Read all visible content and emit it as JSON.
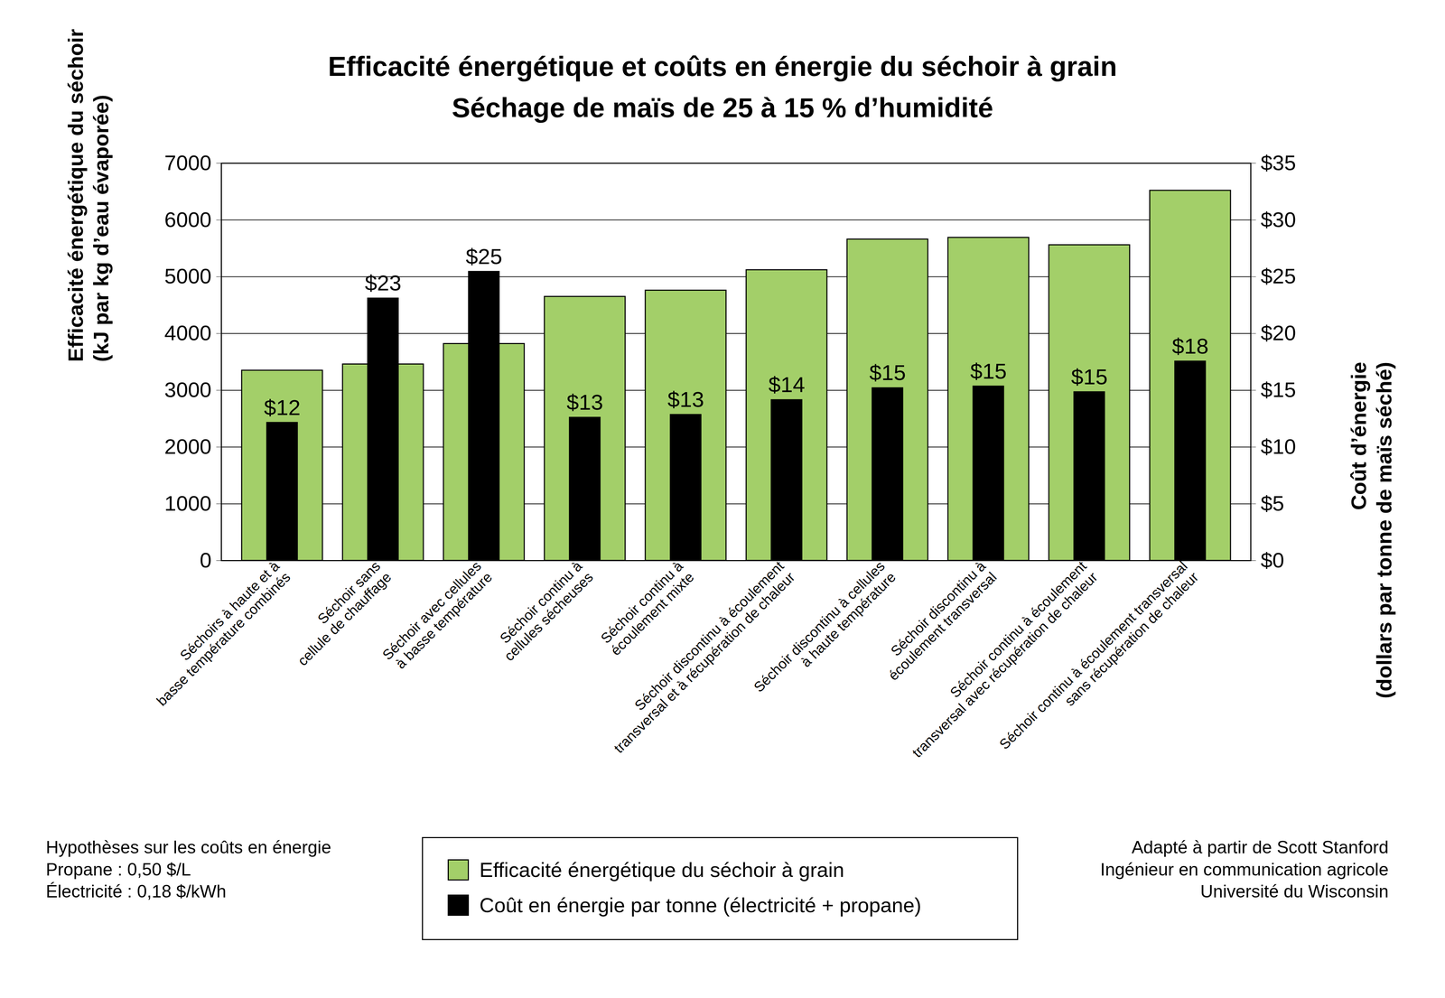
{
  "chart_data": {
    "type": "bar",
    "title": "Efficacité énergétique et coûts en énergie du séchoir à grain",
    "subtitle": "Séchage de maïs de 25 à 15 % d’humidité",
    "categories": [
      "Séchoirs à haute et à\nbasse température combinés",
      "Séchoir sans\ncellule de chauffage",
      "Séchoir avec cellules\nà basse température",
      "Séchoir continu à\ncellules sécheuses",
      "Séchoir continu à\nécoulement mixte",
      "Séchoir discontinu à écoulement\ntransversal et à récupération de chaleur",
      "Séchoir discontinu à cellules\nà haute température",
      "Séchoir discontinu à\nécoulement transversal",
      "Séchoir continu à écoulement\ntransversal avec récupération de chaleur",
      "Séchoir continu à écoulement transversal\nsans récupération de chaleur"
    ],
    "series": [
      {
        "name": "Efficacité énergétique du séchoir à grain",
        "color": "#a3cf69",
        "values": [
          3350,
          3460,
          3820,
          4650,
          4760,
          5120,
          5660,
          5690,
          5560,
          6520
        ]
      },
      {
        "name": "Coût en énergie par tonne (électricité + propane)",
        "color": "#000000",
        "axis": "y2",
        "values": [
          12.15,
          23.1,
          25.45,
          12.6,
          12.85,
          14.15,
          15.2,
          15.35,
          14.85,
          17.55
        ],
        "value_labels": [
          "$12",
          "$23",
          "$25",
          "$13",
          "$13",
          "$14",
          "$15",
          "$15",
          "$15",
          "$18"
        ]
      }
    ],
    "ylabel": "Efficacité énergétique du séchoir\n(kJ par kg d’eau évaporée)",
    "y2label": "Coût d’énergie\n(dollars par tonne de maïs séché)",
    "ylim": [
      0,
      7000
    ],
    "yticks": [
      0,
      1000,
      2000,
      3000,
      4000,
      5000,
      6000,
      7000
    ],
    "y2lim": [
      0,
      35
    ],
    "y2ticks": [
      {
        "value": 0,
        "label": "$0"
      },
      {
        "value": 5,
        "label": "$5"
      },
      {
        "value": 10,
        "label": "$10"
      },
      {
        "value": 15,
        "label": "$15"
      },
      {
        "value": 20,
        "label": "$20"
      },
      {
        "value": 25,
        "label": "$25"
      },
      {
        "value": 30,
        "label": "$30"
      },
      {
        "value": 35,
        "label": "$35"
      }
    ],
    "grid": true,
    "data_labels": true,
    "legend": "bottom",
    "notes": [
      "Hypothèses sur les coûts en énergie",
      "Propane : 0,50 $/L",
      "Électricité : 0,18 $/kWh"
    ],
    "source": [
      "Adapté à partir de Scott Stanford",
      "Ingénieur en communication agricole",
      "Université du Wisconsin"
    ]
  }
}
